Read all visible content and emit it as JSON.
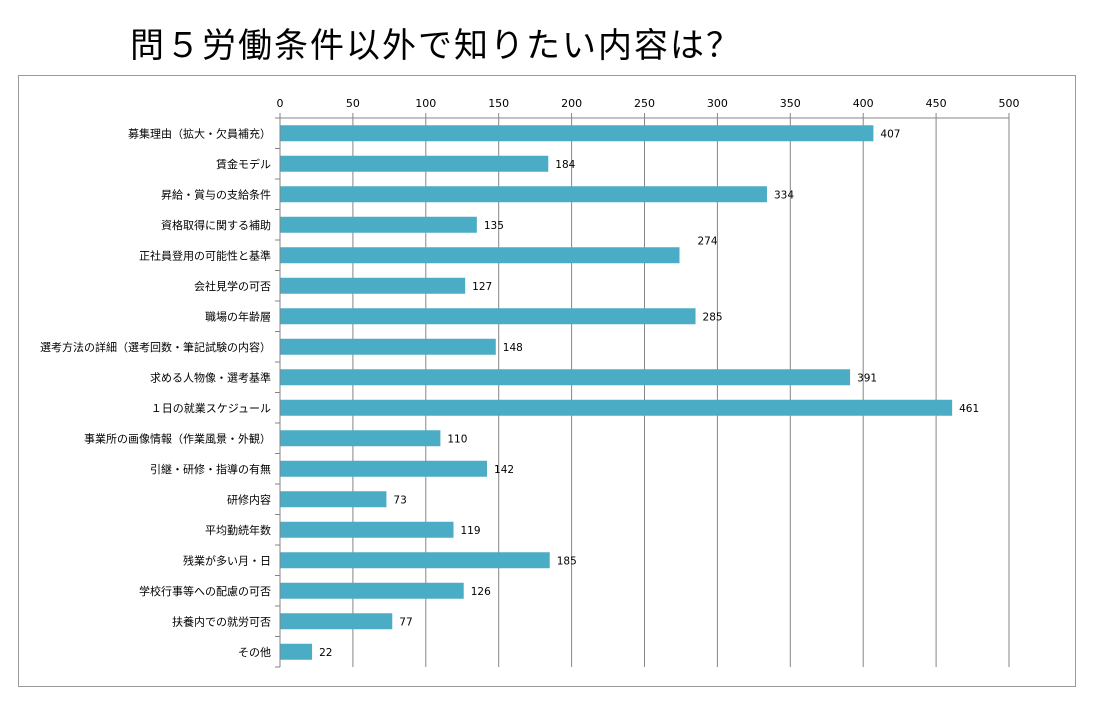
{
  "title": "問５労働条件以外で知りたい内容は？",
  "chart_data": {
    "type": "bar",
    "orientation": "horizontal",
    "title": "問５労働条件以外で知りたい内容は？",
    "xlabel": "",
    "ylabel": "",
    "xlim": [
      0,
      500
    ],
    "xticks": [
      0,
      50,
      100,
      150,
      200,
      250,
      300,
      350,
      400,
      450,
      500
    ],
    "axis_position": "top",
    "grid": true,
    "legend": "none",
    "bar_color": "#4bacc6",
    "categories": [
      "募集理由（拡大・欠員補充）",
      "賃金モデル",
      "昇給・賞与の支給条件",
      "資格取得に関する補助",
      "正社員登用の可能性と基準",
      "会社見学の可否",
      "職場の年齢層",
      "選考方法の詳細（選考回数・筆記試験の内容）",
      "求める人物像・選考基準",
      "１日の就業スケジュール",
      "事業所の画像情報（作業風景・外観）",
      "引継・研修・指導の有無",
      "研修内容",
      "平均勤続年数",
      "残業が多い月・日",
      "学校行事等への配慮の可否",
      "扶養内での就労可否",
      "その他"
    ],
    "values": [
      407,
      184,
      334,
      135,
      274,
      127,
      285,
      148,
      391,
      461,
      110,
      142,
      73,
      119,
      185,
      126,
      77,
      22
    ]
  }
}
